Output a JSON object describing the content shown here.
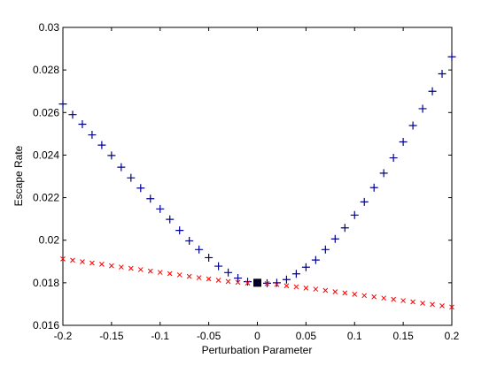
{
  "chart_data": {
    "type": "scatter",
    "title": "",
    "xlabel": "Perturbation Parameter",
    "ylabel": "Escape Rate",
    "xlim": [
      -0.2,
      0.2
    ],
    "ylim": [
      0.016,
      0.03
    ],
    "grid": false,
    "x_ticks": [
      -0.2,
      -0.15,
      -0.1,
      -0.05,
      0,
      0.05,
      0.1,
      0.15,
      0.2
    ],
    "x_tick_labels": [
      "-0.2",
      "-0.15",
      "-0.1",
      "-0.05",
      "0",
      "0.05",
      "0.1",
      "0.15",
      "0.2"
    ],
    "y_ticks": [
      0.016,
      0.018,
      0.02,
      0.022,
      0.024,
      0.026,
      0.028,
      0.03
    ],
    "y_tick_labels": [
      "0.016",
      "0.018",
      "0.02",
      "0.022",
      "0.024",
      "0.026",
      "0.028",
      "0.03"
    ],
    "series": [
      {
        "marker": "plus",
        "color": "#00008B",
        "x": [
          -0.2,
          -0.19,
          -0.18,
          -0.17,
          -0.16,
          -0.15,
          -0.14,
          -0.13,
          -0.12,
          -0.11,
          -0.1,
          -0.09,
          -0.08,
          -0.07,
          -0.06,
          -0.05,
          -0.04,
          -0.03,
          -0.02,
          -0.01,
          0.01,
          0.02,
          0.03,
          0.04,
          0.05,
          0.06,
          0.07,
          0.08,
          0.09,
          0.1,
          0.11,
          0.12,
          0.13,
          0.14,
          0.15,
          0.16,
          0.17,
          0.18,
          0.19,
          0.2
        ],
        "y": [
          0.0264,
          0.0259,
          0.02545,
          0.02495,
          0.02447,
          0.02398,
          0.02343,
          0.02293,
          0.02245,
          0.02195,
          0.02147,
          0.02098,
          0.02046,
          0.01997,
          0.01956,
          0.01918,
          0.01878,
          0.01848,
          0.01822,
          0.01805,
          0.01798,
          0.018,
          0.01815,
          0.01842,
          0.01873,
          0.01907,
          0.01956,
          0.02006,
          0.02058,
          0.02118,
          0.0218,
          0.02247,
          0.02315,
          0.02387,
          0.02462,
          0.02539,
          0.02618,
          0.027,
          0.02782,
          0.02862
        ]
      },
      {
        "marker": "x",
        "color": "#FF0000",
        "x": [
          -0.2,
          -0.19,
          -0.18,
          -0.17,
          -0.16,
          -0.15,
          -0.14,
          -0.13,
          -0.12,
          -0.11,
          -0.1,
          -0.09,
          -0.08,
          -0.07,
          -0.06,
          -0.05,
          -0.04,
          -0.03,
          -0.02,
          -0.01,
          0.01,
          0.02,
          0.03,
          0.04,
          0.05,
          0.06,
          0.07,
          0.08,
          0.09,
          0.1,
          0.11,
          0.12,
          0.13,
          0.14,
          0.15,
          0.16,
          0.17,
          0.18,
          0.19,
          0.2
        ],
        "y": [
          0.01912,
          0.01906,
          0.01899,
          0.01893,
          0.01887,
          0.0188,
          0.01874,
          0.01868,
          0.01862,
          0.01855,
          0.01849,
          0.01843,
          0.01837,
          0.0183,
          0.01824,
          0.01818,
          0.01812,
          0.01806,
          0.01802,
          0.01799,
          0.01796,
          0.01792,
          0.01786,
          0.01781,
          0.01775,
          0.0177,
          0.01764,
          0.01758,
          0.01752,
          0.01746,
          0.0174,
          0.01734,
          0.01728,
          0.01722,
          0.01716,
          0.0171,
          0.01704,
          0.01698,
          0.01692,
          0.01686
        ]
      },
      {
        "marker": "square",
        "color": "#000033",
        "x": [
          0
        ],
        "y": [
          0.018
        ]
      }
    ]
  }
}
